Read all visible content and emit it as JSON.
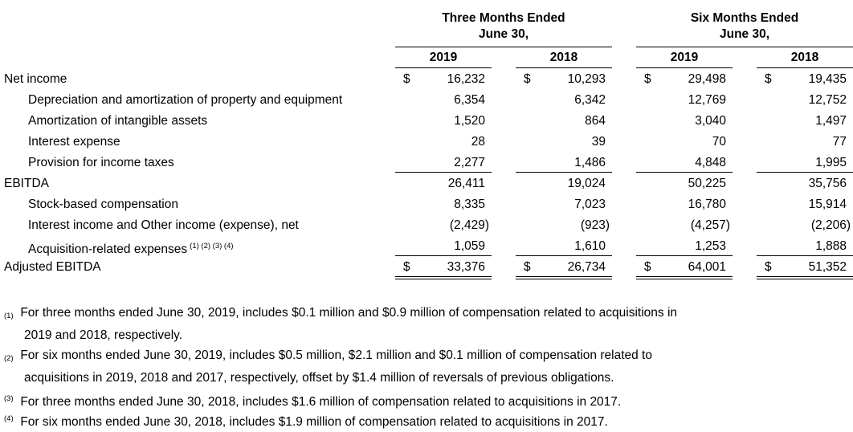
{
  "headers": {
    "three_months": [
      "Three Months Ended",
      "June 30,"
    ],
    "six_months": [
      "Six Months Ended",
      "June 30,"
    ],
    "years": [
      "2019",
      "2018",
      "2019",
      "2018"
    ]
  },
  "rows": [
    {
      "label": "Net income",
      "fn": "",
      "dollar": true,
      "values": [
        "16,232",
        "10,293",
        "29,498",
        "19,435"
      ]
    },
    {
      "label": "Depreciation and amortization of property and equipment",
      "fn": "",
      "dollar": false,
      "values": [
        "6,354",
        "6,342",
        "12,769",
        "12,752"
      ]
    },
    {
      "label": "Amortization of intangible assets",
      "fn": "",
      "dollar": false,
      "values": [
        "1,520",
        "864",
        "3,040",
        "1,497"
      ]
    },
    {
      "label": "Interest expense",
      "fn": "",
      "dollar": false,
      "values": [
        "28",
        "39",
        "70",
        "77"
      ]
    },
    {
      "label": "Provision for income taxes",
      "fn": "",
      "dollar": false,
      "values": [
        "2,277",
        "1,486",
        "4,848",
        "1,995"
      ]
    },
    {
      "label": "EBITDA",
      "fn": "",
      "dollar": false,
      "values": [
        "26,411",
        "19,024",
        "50,225",
        "35,756"
      ]
    },
    {
      "label": "Stock-based compensation",
      "fn": "",
      "dollar": false,
      "values": [
        "8,335",
        "7,023",
        "16,780",
        "15,914"
      ]
    },
    {
      "label": "Interest income and Other income (expense), net",
      "fn": "",
      "dollar": false,
      "values": [
        "(2,429)",
        "(923)",
        "(4,257)",
        "(2,206)"
      ]
    },
    {
      "label": "Acquisition-related expenses",
      "fn": "(1) (2) (3) (4)",
      "dollar": false,
      "values": [
        "1,059",
        "1,610",
        "1,253",
        "1,888"
      ]
    },
    {
      "label": "Adjusted EBITDA",
      "fn": "",
      "dollar": true,
      "values": [
        "33,376",
        "26,734",
        "64,001",
        "51,352"
      ]
    }
  ],
  "dollar_sign": "$",
  "footnotes": [
    {
      "mark": "(1)",
      "lines": [
        "For three months ended June 30, 2019, includes $0.1 million and $0.9 million of compensation related to acquisitions in",
        "2019 and 2018, respectively."
      ]
    },
    {
      "mark": "(2)",
      "lines": [
        "For six months ended June 30, 2019, includes $0.5 million, $2.1 million and $0.1 million of compensation related to",
        "acquisitions in 2019, 2018 and 2017, respectively, offset by $1.4 million of reversals of previous obligations."
      ]
    },
    {
      "mark": "(3)",
      "lines": [
        "For three months ended June 30, 2018, includes $1.6 million of compensation related to acquisitions in 2017."
      ]
    },
    {
      "mark": "(4)",
      "lines": [
        "For six months ended June 30, 2018, includes $1.9 million of compensation related to acquisitions in 2017."
      ]
    }
  ]
}
